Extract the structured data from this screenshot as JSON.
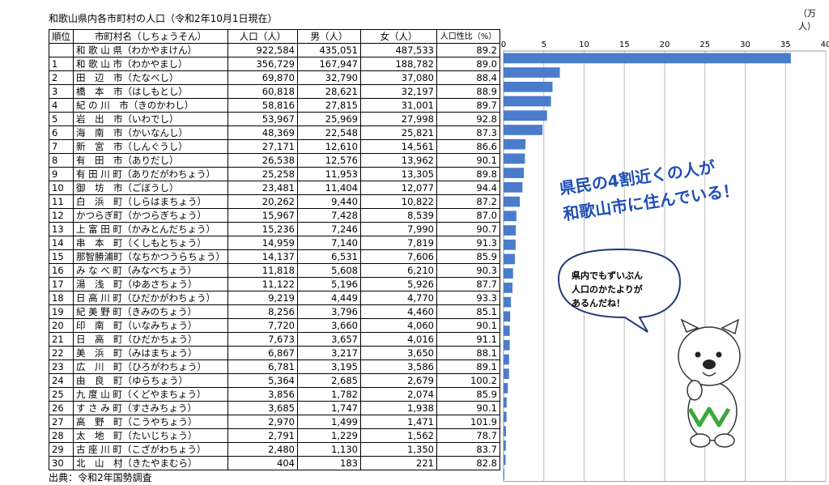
{
  "title": "和歌山県内各市町村の人口（令和2年10月1日現在）",
  "unit_label": "（万人）",
  "source": "出典：令和2年国勢調査",
  "table": {
    "headers": {
      "rank": "順位",
      "name": "市町村名（しちょうそん）",
      "population": "人口（人）",
      "male": "男（人）",
      "female": "女（人）",
      "ratio": "人口性比（%）"
    },
    "rows": [
      {
        "rank": "",
        "name": "和 歌 山 県（わかやまけん）",
        "population": "922,584",
        "male": "435,051",
        "female": "487,533",
        "ratio": "89.2"
      },
      {
        "rank": "1",
        "name": "和 歌 山 市（わかやまし）",
        "population": "356,729",
        "male": "167,947",
        "female": "188,782",
        "ratio": "89.0"
      },
      {
        "rank": "2",
        "name": "田　辺　市（たなべし）",
        "population": "69,870",
        "male": "32,790",
        "female": "37,080",
        "ratio": "88.4"
      },
      {
        "rank": "3",
        "name": "橋　本　市（はしもとし）",
        "population": "60,818",
        "male": "28,621",
        "female": "32,197",
        "ratio": "88.9"
      },
      {
        "rank": "4",
        "name": "紀 の 川　市（きのかわし）",
        "population": "58,816",
        "male": "27,815",
        "female": "31,001",
        "ratio": "89.7"
      },
      {
        "rank": "5",
        "name": "岩　出　市（いわでし）",
        "population": "53,967",
        "male": "25,969",
        "female": "27,998",
        "ratio": "92.8"
      },
      {
        "rank": "6",
        "name": "海　南　市（かいなんし）",
        "population": "48,369",
        "male": "22,548",
        "female": "25,821",
        "ratio": "87.3"
      },
      {
        "rank": "7",
        "name": "新　宮　市（しんぐうし）",
        "population": "27,171",
        "male": "12,610",
        "female": "14,561",
        "ratio": "86.6"
      },
      {
        "rank": "8",
        "name": "有　田　市（ありだし）",
        "population": "26,538",
        "male": "12,576",
        "female": "13,962",
        "ratio": "90.1"
      },
      {
        "rank": "9",
        "name": "有 田 川 町（ありだがわちょう）",
        "population": "25,258",
        "male": "11,953",
        "female": "13,305",
        "ratio": "89.8"
      },
      {
        "rank": "10",
        "name": "御　坊　市（ごぼうし）",
        "population": "23,481",
        "male": "11,404",
        "female": "12,077",
        "ratio": "94.4"
      },
      {
        "rank": "11",
        "name": "白　浜　町（しらはまちょう）",
        "population": "20,262",
        "male": "9,440",
        "female": "10,822",
        "ratio": "87.2"
      },
      {
        "rank": "12",
        "name": "かつらぎ町（かつらぎちょう）",
        "population": "15,967",
        "male": "7,428",
        "female": "8,539",
        "ratio": "87.0"
      },
      {
        "rank": "13",
        "name": "上 富 田 町（かみとんだちょう）",
        "population": "15,236",
        "male": "7,246",
        "female": "7,990",
        "ratio": "90.7"
      },
      {
        "rank": "14",
        "name": "串　本　町（くしもとちょう）",
        "population": "14,959",
        "male": "7,140",
        "female": "7,819",
        "ratio": "91.3"
      },
      {
        "rank": "15",
        "name": "那智勝浦町（なちかつうらちょう）",
        "population": "14,137",
        "male": "6,531",
        "female": "7,606",
        "ratio": "85.9"
      },
      {
        "rank": "16",
        "name": "み な べ 町（みなべちょう）",
        "population": "11,818",
        "male": "5,608",
        "female": "6,210",
        "ratio": "90.3"
      },
      {
        "rank": "17",
        "name": "湯　浅　町（ゆあさちょう）",
        "population": "11,122",
        "male": "5,196",
        "female": "5,926",
        "ratio": "87.7"
      },
      {
        "rank": "18",
        "name": "日 高 川 町（ひだかがわちょう）",
        "population": "9,219",
        "male": "4,449",
        "female": "4,770",
        "ratio": "93.3"
      },
      {
        "rank": "19",
        "name": "紀 美 野 町（きみのちょう）",
        "population": "8,256",
        "male": "3,796",
        "female": "4,460",
        "ratio": "85.1"
      },
      {
        "rank": "20",
        "name": "印　南　町（いなみちょう）",
        "population": "7,720",
        "male": "3,660",
        "female": "4,060",
        "ratio": "90.1"
      },
      {
        "rank": "21",
        "name": "日　高　町（ひだかちょう）",
        "population": "7,673",
        "male": "3,657",
        "female": "4,016",
        "ratio": "91.1"
      },
      {
        "rank": "22",
        "name": "美　浜　町（みはまちょう）",
        "population": "6,867",
        "male": "3,217",
        "female": "3,650",
        "ratio": "88.1"
      },
      {
        "rank": "23",
        "name": "広　川　町（ひろがわちょう）",
        "population": "6,781",
        "male": "3,195",
        "female": "3,586",
        "ratio": "89.1"
      },
      {
        "rank": "24",
        "name": "由　良　町（ゆらちょう）",
        "population": "5,364",
        "male": "2,685",
        "female": "2,679",
        "ratio": "100.2"
      },
      {
        "rank": "25",
        "name": "九 度 山 町（くどやまちょう）",
        "population": "3,856",
        "male": "1,782",
        "female": "2,074",
        "ratio": "85.9"
      },
      {
        "rank": "26",
        "name": "す さ み 町（すさみちょう）",
        "population": "3,685",
        "male": "1,747",
        "female": "1,938",
        "ratio": "90.1"
      },
      {
        "rank": "27",
        "name": "高　野　町（こうやちょう）",
        "population": "2,970",
        "male": "1,499",
        "female": "1,471",
        "ratio": "101.9"
      },
      {
        "rank": "28",
        "name": "太　地　町（たいじちょう）",
        "population": "2,791",
        "male": "1,229",
        "female": "1,562",
        "ratio": "78.7"
      },
      {
        "rank": "29",
        "name": "古 座 川 町（こざがわちょう）",
        "population": "2,480",
        "male": "1,130",
        "female": "1,350",
        "ratio": "83.7"
      },
      {
        "rank": "30",
        "name": "北　山　村（きたやまむら）",
        "population": "404",
        "male": "183",
        "female": "221",
        "ratio": "82.8"
      }
    ]
  },
  "chart_data": {
    "type": "bar",
    "orientation": "horizontal",
    "x_unit": "（万人）",
    "xlim": [
      0,
      40
    ],
    "xticks": [
      0,
      5,
      10,
      15,
      20,
      25,
      30,
      35,
      40
    ],
    "grid": true,
    "categories": [
      "和歌山市",
      "田辺市",
      "橋本市",
      "紀の川市",
      "岩出市",
      "海南市",
      "新宮市",
      "有田市",
      "有田川町",
      "御坊市",
      "白浜町",
      "かつらぎ町",
      "上富田町",
      "串本町",
      "那智勝浦町",
      "みなべ町",
      "湯浅町",
      "日高川町",
      "紀美野町",
      "印南町",
      "日高町",
      "美浜町",
      "広川町",
      "由良町",
      "九度山町",
      "すさみ町",
      "高野町",
      "太地町",
      "古座川町",
      "北山村"
    ],
    "values": [
      35.6729,
      6.987,
      6.0818,
      5.8816,
      5.3967,
      4.8369,
      2.7171,
      2.6538,
      2.5258,
      2.3481,
      2.0262,
      1.5967,
      1.5236,
      1.4959,
      1.4137,
      1.1818,
      1.1122,
      0.9219,
      0.8256,
      0.772,
      0.7673,
      0.6867,
      0.6781,
      0.5364,
      0.3856,
      0.3685,
      0.297,
      0.2791,
      0.248,
      0.0404
    ],
    "bar_color": "#4a7ccb"
  },
  "callout": {
    "line1": "県民の4割近くの人が",
    "line2": "和歌山市に住んでいる！"
  },
  "bubble": {
    "line1": "県内でもずいぶん",
    "line2": "人口のかたよりが",
    "line3": "あるんだね！"
  }
}
